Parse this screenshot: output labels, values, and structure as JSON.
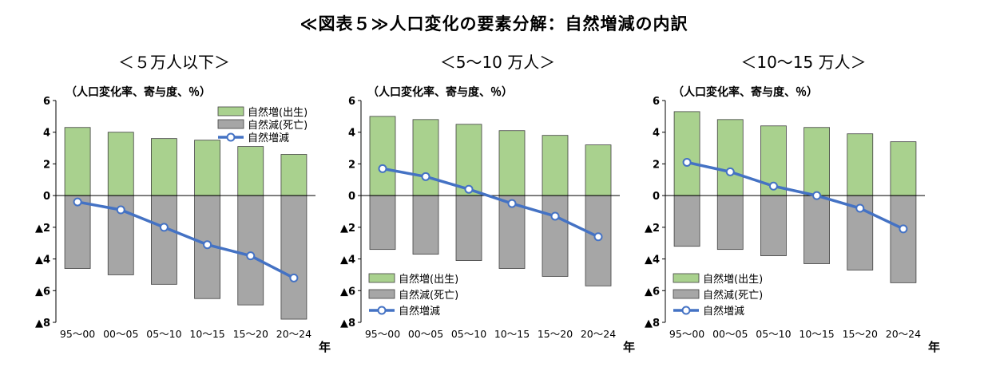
{
  "page": {
    "title": "≪図表５≫人口変化の要素分解：自然増減の内訳"
  },
  "legend_labels": {
    "births": "自然増(出生)",
    "deaths": "自然減(死亡)",
    "net": "自然増減"
  },
  "colors": {
    "births": "#a9d18e",
    "deaths": "#a6a6a6",
    "net": "#4472c4",
    "bar_border": "#404040",
    "axis": "#000000"
  },
  "chart_data": [
    {
      "type": "bar",
      "title": "＜５万人以下＞",
      "ylabel": "（人口変化率、寄与度、％）",
      "xunit": "年",
      "categories": [
        "95～00",
        "00～05",
        "05～10",
        "10～15",
        "15～20",
        "20～24"
      ],
      "ylim": [
        -8,
        6
      ],
      "yticks": [
        6,
        4,
        2,
        0,
        -2,
        -4,
        -6,
        -8
      ],
      "ytick_labels": [
        "6",
        "4",
        "2",
        "0",
        "▲2",
        "▲4",
        "▲6",
        "▲8"
      ],
      "legend_position": "top-right",
      "series": [
        {
          "name": "自然増(出生)",
          "kind": "bar",
          "values": [
            4.3,
            4.0,
            3.6,
            3.5,
            3.1,
            2.6
          ]
        },
        {
          "name": "自然減(死亡)",
          "kind": "bar",
          "values": [
            -4.6,
            -5.0,
            -5.6,
            -6.5,
            -6.9,
            -7.8
          ]
        },
        {
          "name": "自然増減",
          "kind": "line",
          "values": [
            -0.4,
            -0.9,
            -2.0,
            -3.1,
            -3.8,
            -5.2
          ]
        }
      ]
    },
    {
      "type": "bar",
      "title": "＜5～10 万人＞",
      "ylabel": "（人口変化率、寄与度、％）",
      "xunit": "年",
      "categories": [
        "95～00",
        "00～05",
        "05～10",
        "10～15",
        "15～20",
        "20～24"
      ],
      "ylim": [
        -8,
        6
      ],
      "yticks": [
        6,
        4,
        2,
        0,
        -2,
        -4,
        -6,
        -8
      ],
      "ytick_labels": [
        "6",
        "4",
        "2",
        "0",
        "▲2",
        "▲4",
        "▲6",
        "▲8"
      ],
      "legend_position": "bottom-left",
      "series": [
        {
          "name": "自然増(出生)",
          "kind": "bar",
          "values": [
            5.0,
            4.8,
            4.5,
            4.1,
            3.8,
            3.2
          ]
        },
        {
          "name": "自然減(死亡)",
          "kind": "bar",
          "values": [
            -3.4,
            -3.7,
            -4.1,
            -4.6,
            -5.1,
            -5.7
          ]
        },
        {
          "name": "自然増減",
          "kind": "line",
          "values": [
            1.7,
            1.2,
            0.4,
            -0.5,
            -1.3,
            -2.6
          ]
        }
      ]
    },
    {
      "type": "bar",
      "title": "＜10～15 万人＞",
      "ylabel": "（人口変化率、寄与度、％）",
      "xunit": "年",
      "categories": [
        "95～00",
        "00～05",
        "05～10",
        "10～15",
        "15～20",
        "20～24"
      ],
      "ylim": [
        -8,
        6
      ],
      "yticks": [
        6,
        4,
        2,
        0,
        -2,
        -4,
        -6,
        -8
      ],
      "ytick_labels": [
        "6",
        "4",
        "2",
        "0",
        "▲2",
        "▲4",
        "▲6",
        "▲8"
      ],
      "legend_position": "bottom-left",
      "series": [
        {
          "name": "自然増(出生)",
          "kind": "bar",
          "values": [
            5.3,
            4.8,
            4.4,
            4.3,
            3.9,
            3.4
          ]
        },
        {
          "name": "自然減(死亡)",
          "kind": "bar",
          "values": [
            -3.2,
            -3.4,
            -3.8,
            -4.3,
            -4.7,
            -5.5
          ]
        },
        {
          "name": "自然増減",
          "kind": "line",
          "values": [
            2.1,
            1.5,
            0.6,
            0.0,
            -0.8,
            -2.1
          ]
        }
      ]
    }
  ]
}
